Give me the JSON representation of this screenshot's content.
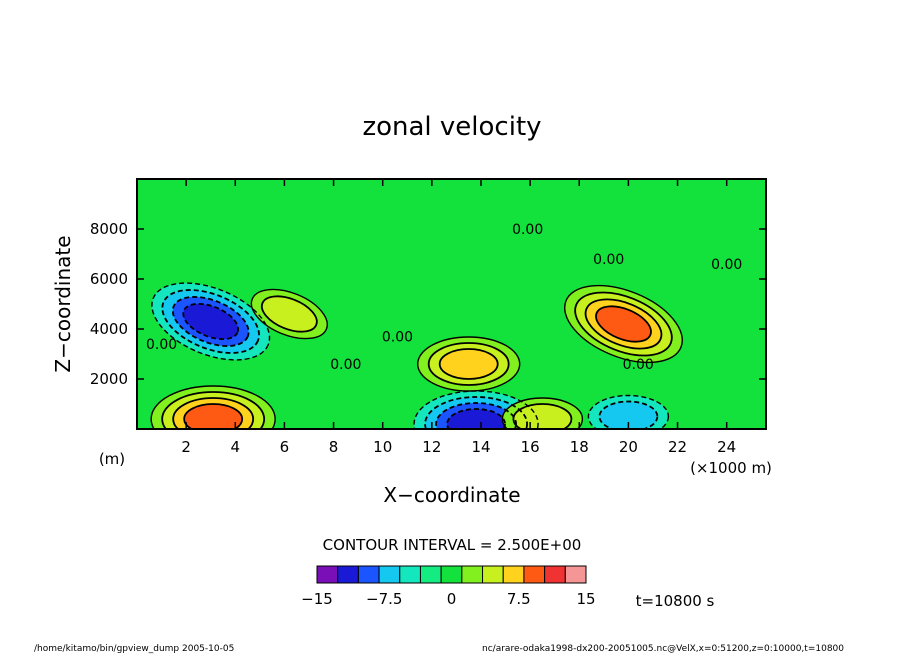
{
  "chart_data": {
    "type": "heatmap",
    "title": "zonal velocity",
    "xlabel": "X−coordinate",
    "ylabel": "Z−coordinate",
    "x_unit": "(×1000 m)",
    "y_unit": "(m)",
    "xlim": [
      0,
      25.6
    ],
    "ylim": [
      0,
      10000
    ],
    "x_ticks": [
      "2",
      "4",
      "6",
      "8",
      "10",
      "12",
      "14",
      "16",
      "18",
      "20",
      "22",
      "24"
    ],
    "x_tick_values": [
      2,
      4,
      6,
      8,
      10,
      12,
      14,
      16,
      18,
      20,
      22,
      24
    ],
    "y_ticks": [
      "2000",
      "4000",
      "6000",
      "8000"
    ],
    "y_tick_values": [
      2000,
      4000,
      6000,
      8000
    ],
    "contour_interval_label": "CONTOUR INTERVAL = 2.500E+00",
    "contour_labels": [
      {
        "text": "0.00",
        "x": 15.9,
        "y": 7800
      },
      {
        "text": "0.00",
        "x": 19.2,
        "y": 6600
      },
      {
        "text": "0.00",
        "x": 24.0,
        "y": 6400
      },
      {
        "text": "0.00",
        "x": 1.0,
        "y": 3200
      },
      {
        "text": "0.00",
        "x": 10.6,
        "y": 3500
      },
      {
        "text": "0.00",
        "x": 8.5,
        "y": 2400
      },
      {
        "text": "0.00",
        "x": 20.4,
        "y": 2400
      }
    ],
    "features": [
      {
        "x": 3.0,
        "y": 4300,
        "value": -10.0
      },
      {
        "x": 6.2,
        "y": 4600,
        "value": 5.0
      },
      {
        "x": 13.5,
        "y": 2600,
        "value": 7.5
      },
      {
        "x": 19.8,
        "y": 4200,
        "value": 10.0
      },
      {
        "x": 3.1,
        "y": 400,
        "value": 10.0
      },
      {
        "x": 13.8,
        "y": 200,
        "value": -10.0
      },
      {
        "x": 20.0,
        "y": 500,
        "value": -5.0
      },
      {
        "x": 16.5,
        "y": 400,
        "value": 5.0
      }
    ],
    "colorbar": {
      "tick_labels": [
        "−15",
        "−7.5",
        "0",
        "7.5",
        "15"
      ],
      "tick_values": [
        -15,
        -7.5,
        0,
        7.5,
        15
      ],
      "colors": [
        "#7a0fb8",
        "#1a1ad6",
        "#1a55ff",
        "#14c8f0",
        "#14e6be",
        "#14ec82",
        "#14e23c",
        "#82f01e",
        "#c8f01e",
        "#ffd21e",
        "#ff5a14",
        "#f03232",
        "#f59696"
      ]
    },
    "time_label": "t=10800 s"
  },
  "footer": {
    "left": "/home/kitamo/bin/gpview_dump  2005-10-05",
    "right": "nc/arare-odaka1998-dx200-20051005.nc@VelX,x=0:51200,z=0:10000,t=10800"
  }
}
